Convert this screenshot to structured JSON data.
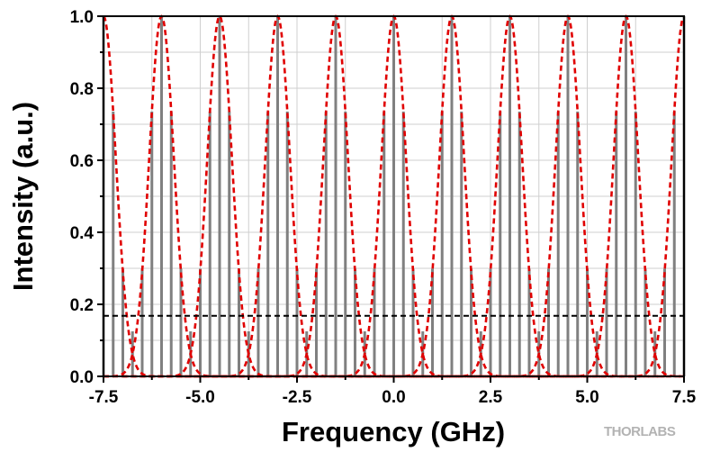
{
  "chart_data": {
    "type": "line",
    "xlabel": "Frequency (GHz)",
    "ylabel": "Intensity (a.u.)",
    "xlim": [
      -7.5,
      7.5
    ],
    "ylim": [
      0.0,
      1.0
    ],
    "x_ticks": [
      -7.5,
      -5.0,
      -2.5,
      0.0,
      2.5,
      5.0,
      7.5
    ],
    "x_tick_labels": [
      "-7.5",
      "-5.0",
      "-2.5",
      "0.0",
      "2.5",
      "5.0",
      "7.5"
    ],
    "y_ticks": [
      0.0,
      0.2,
      0.4,
      0.6,
      0.8,
      1.0
    ],
    "y_tick_labels": [
      "0.0",
      "0.2",
      "0.4",
      "0.6",
      "0.8",
      "1.0"
    ],
    "grid": true,
    "series": [
      {
        "kind": "stem",
        "color": "#808080",
        "spacing": 0.25,
        "envelope": "sum of gaussian lobes",
        "x_range": [
          -7.5,
          7.5
        ]
      },
      {
        "kind": "gaussian-envelopes",
        "color": "#e00000",
        "style": "dashed",
        "centers": [
          -7.5,
          -6.0,
          -4.5,
          -3.0,
          -1.5,
          0.0,
          1.5,
          3.0,
          4.5,
          6.0,
          7.5
        ],
        "peak": 1.0,
        "fwhm": 0.75
      },
      {
        "kind": "threshold",
        "color": "#000000",
        "style": "dashed",
        "y": 0.168
      }
    ]
  },
  "brand": {
    "logo_text": "THORLABS",
    "color": "#b3b3b3"
  }
}
